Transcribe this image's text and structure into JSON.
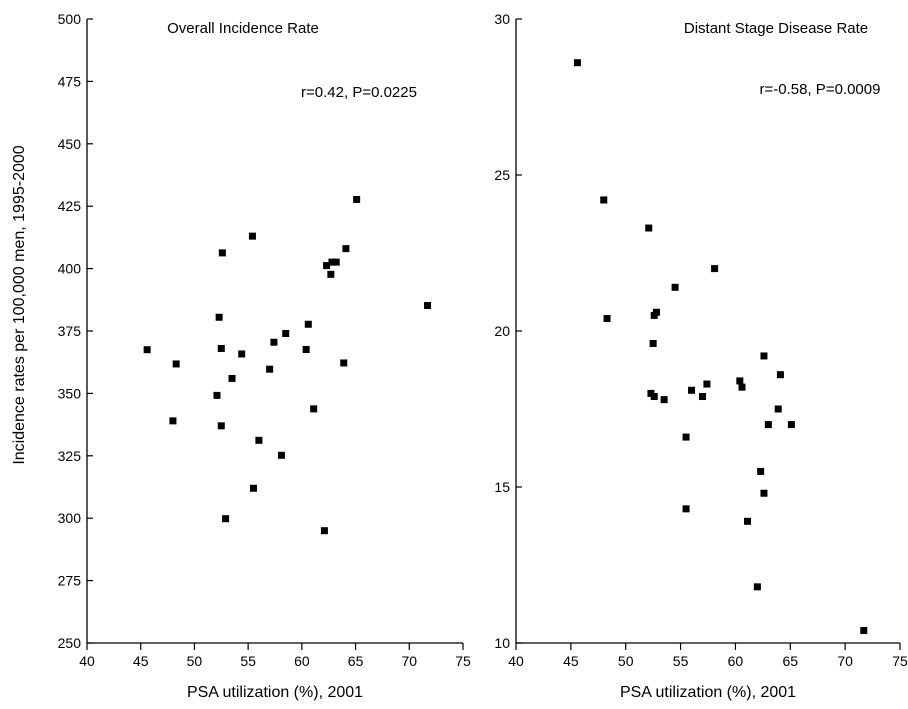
{
  "figure": {
    "ylabel": "Incidence rates  per 100,000 men, 1995-2000"
  },
  "chart_data": [
    {
      "type": "scatter",
      "title": "Overall Incidence Rate",
      "annotation": "r=0.42, P=0.0225",
      "xlabel": "PSA utilization (%), 2001",
      "xlim": [
        40,
        75
      ],
      "xticks": [
        40,
        45,
        50,
        55,
        60,
        65,
        70,
        75
      ],
      "ylim": [
        250,
        500
      ],
      "yticks": [
        250,
        275,
        300,
        325,
        350,
        375,
        400,
        425,
        450,
        475,
        500
      ],
      "marker": "square",
      "color": "#000000",
      "points": [
        {
          "x": 45.6,
          "y": 367.5
        },
        {
          "x": 48.3,
          "y": 361.8
        },
        {
          "x": 48.0,
          "y": 339.0
        },
        {
          "x": 52.1,
          "y": 349.2
        },
        {
          "x": 52.3,
          "y": 380.5
        },
        {
          "x": 52.5,
          "y": 368.0
        },
        {
          "x": 52.6,
          "y": 406.3
        },
        {
          "x": 52.5,
          "y": 337.0
        },
        {
          "x": 52.9,
          "y": 299.8
        },
        {
          "x": 53.5,
          "y": 356.0
        },
        {
          "x": 54.4,
          "y": 365.8
        },
        {
          "x": 55.4,
          "y": 413.0
        },
        {
          "x": 55.5,
          "y": 312.0
        },
        {
          "x": 56.0,
          "y": 331.2
        },
        {
          "x": 57.0,
          "y": 359.7
        },
        {
          "x": 57.4,
          "y": 370.5
        },
        {
          "x": 58.1,
          "y": 325.2
        },
        {
          "x": 58.5,
          "y": 374.0
        },
        {
          "x": 60.4,
          "y": 367.6
        },
        {
          "x": 60.6,
          "y": 377.7
        },
        {
          "x": 61.1,
          "y": 343.8
        },
        {
          "x": 62.1,
          "y": 295.0
        },
        {
          "x": 62.3,
          "y": 401.2
        },
        {
          "x": 62.7,
          "y": 397.7
        },
        {
          "x": 62.8,
          "y": 402.6
        },
        {
          "x": 63.2,
          "y": 402.6
        },
        {
          "x": 63.9,
          "y": 362.2
        },
        {
          "x": 64.1,
          "y": 408.0
        },
        {
          "x": 65.1,
          "y": 427.7
        },
        {
          "x": 71.7,
          "y": 385.2
        }
      ]
    },
    {
      "type": "scatter",
      "title": "Distant Stage Disease Rate",
      "annotation": "r=-0.58, P=0.0009",
      "xlabel": "PSA utilization (%), 2001",
      "xlim": [
        40,
        75
      ],
      "xticks": [
        40,
        45,
        50,
        55,
        60,
        65,
        70,
        75
      ],
      "ylim": [
        10,
        30
      ],
      "yticks": [
        10,
        15,
        20,
        25,
        30
      ],
      "marker": "square",
      "color": "#000000",
      "points": [
        {
          "x": 45.6,
          "y": 28.6
        },
        {
          "x": 48.0,
          "y": 24.2
        },
        {
          "x": 48.3,
          "y": 20.4
        },
        {
          "x": 52.1,
          "y": 23.3
        },
        {
          "x": 52.3,
          "y": 18.0
        },
        {
          "x": 52.5,
          "y": 19.6
        },
        {
          "x": 52.6,
          "y": 20.5
        },
        {
          "x": 52.6,
          "y": 17.9
        },
        {
          "x": 52.8,
          "y": 20.6
        },
        {
          "x": 53.5,
          "y": 17.8
        },
        {
          "x": 54.5,
          "y": 21.4
        },
        {
          "x": 55.5,
          "y": 16.6
        },
        {
          "x": 55.5,
          "y": 14.3
        },
        {
          "x": 56.0,
          "y": 18.1
        },
        {
          "x": 57.0,
          "y": 17.9
        },
        {
          "x": 57.4,
          "y": 18.3
        },
        {
          "x": 58.1,
          "y": 22.0
        },
        {
          "x": 60.4,
          "y": 18.4
        },
        {
          "x": 60.6,
          "y": 18.2
        },
        {
          "x": 61.1,
          "y": 13.9
        },
        {
          "x": 62.0,
          "y": 11.8
        },
        {
          "x": 62.3,
          "y": 15.5
        },
        {
          "x": 62.6,
          "y": 14.8
        },
        {
          "x": 62.6,
          "y": 19.2
        },
        {
          "x": 63.0,
          "y": 17.0
        },
        {
          "x": 63.9,
          "y": 17.5
        },
        {
          "x": 64.1,
          "y": 18.6
        },
        {
          "x": 65.1,
          "y": 17.0
        },
        {
          "x": 71.7,
          "y": 10.4
        }
      ]
    }
  ]
}
